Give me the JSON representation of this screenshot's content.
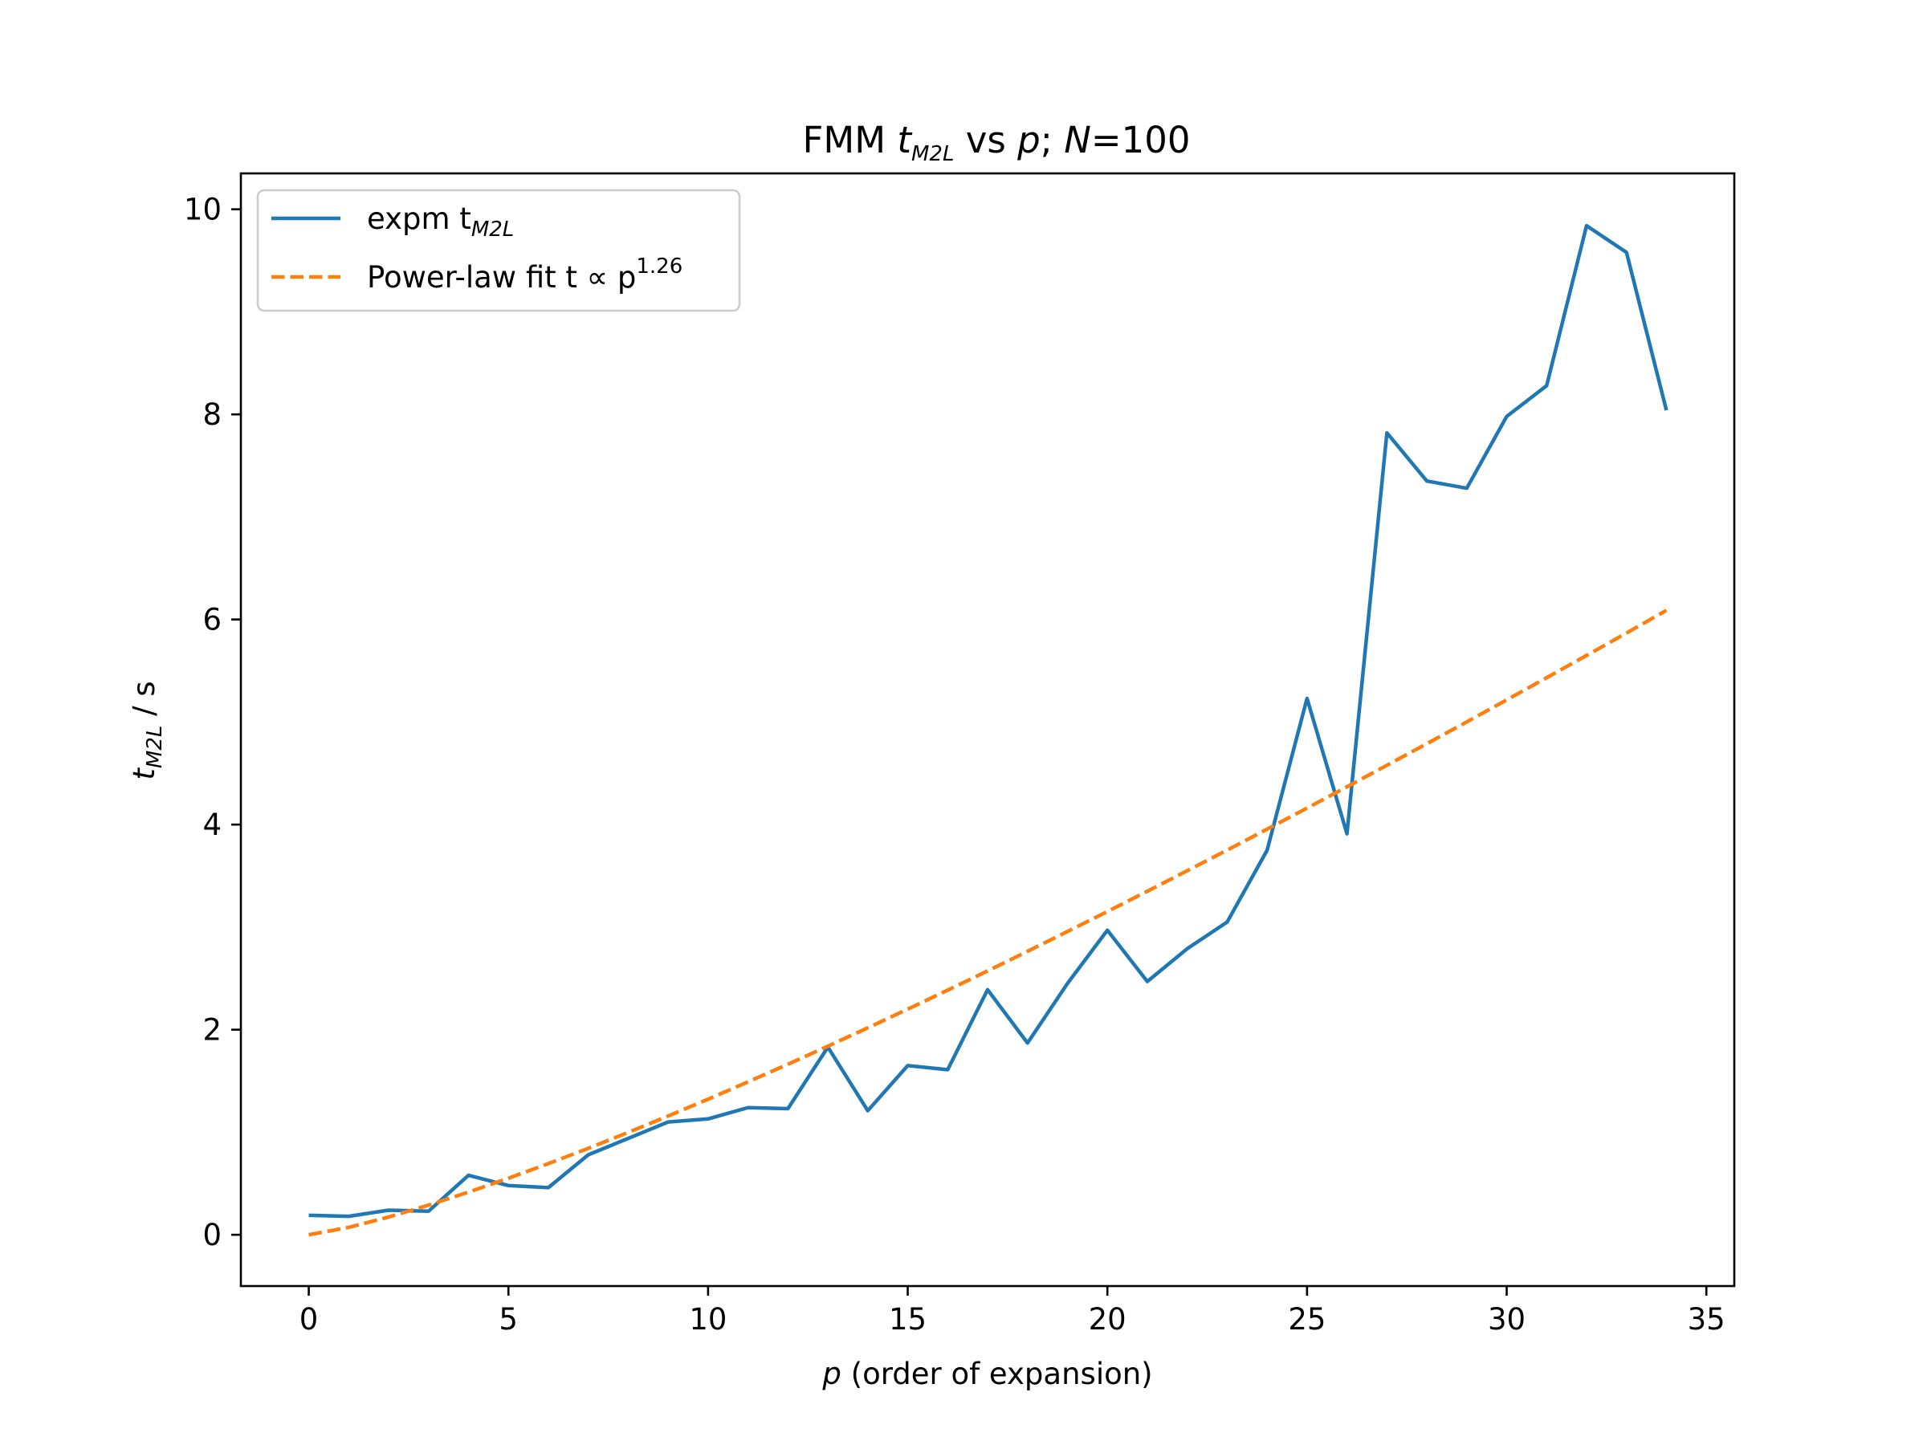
{
  "chart_data": {
    "type": "line",
    "title": {
      "prefix": "FMM ",
      "t": "t",
      "t_sub": "M2L",
      "middle": " vs ",
      "p": "p",
      "semi": "; ",
      "N": "N",
      "suffix": "=100"
    },
    "xlabel": {
      "p": "p",
      "rest": " (order of expansion)"
    },
    "ylabel": {
      "t": "t",
      "t_sub": "M2L",
      "rest": " / s"
    },
    "xlim": [
      -1.7,
      35.7
    ],
    "ylim": [
      -0.5,
      10.35
    ],
    "xticks": [
      0,
      5,
      10,
      15,
      20,
      25,
      30,
      35
    ],
    "yticks": [
      0,
      2,
      4,
      6,
      8,
      10
    ],
    "xtick_labels": [
      "0",
      "5",
      "10",
      "15",
      "20",
      "25",
      "30",
      "35"
    ],
    "ytick_labels": [
      "0",
      "2",
      "4",
      "6",
      "8",
      "10"
    ],
    "grid": false,
    "legend_position": "top-left",
    "series": [
      {
        "name": "expm  t",
        "name_sub": "M2L",
        "color": "#1f77b4",
        "style": "solid",
        "x": [
          0,
          1,
          2,
          3,
          4,
          5,
          6,
          7,
          8,
          9,
          10,
          11,
          12,
          13,
          14,
          15,
          16,
          17,
          18,
          19,
          20,
          21,
          22,
          23,
          24,
          25,
          26,
          27,
          28,
          29,
          30,
          31,
          32,
          33,
          34
        ],
        "values": [
          0.19,
          0.18,
          0.24,
          0.23,
          0.58,
          0.48,
          0.46,
          0.78,
          0.94,
          1.1,
          1.13,
          1.24,
          1.23,
          1.83,
          1.21,
          1.65,
          1.61,
          2.39,
          1.87,
          2.45,
          2.97,
          2.47,
          2.79,
          3.05,
          3.75,
          5.23,
          3.91,
          7.82,
          7.35,
          7.28,
          7.98,
          8.28,
          9.84,
          9.58,
          8.04
        ]
      },
      {
        "name": "Power-law fit  t ∝ p",
        "name_sup": "1.26",
        "color": "#ff7f0e",
        "style": "dashed",
        "x": [
          0,
          1,
          2,
          3,
          4,
          5,
          6,
          7,
          8,
          9,
          10,
          11,
          12,
          13,
          14,
          15,
          16,
          17,
          18,
          19,
          20,
          21,
          22,
          23,
          24,
          25,
          26,
          27,
          28,
          29,
          30,
          31,
          32,
          33,
          34
        ],
        "values": [
          0.0,
          0.072,
          0.173,
          0.289,
          0.416,
          0.551,
          0.694,
          0.843,
          0.998,
          1.158,
          1.322,
          1.491,
          1.663,
          1.839,
          2.018,
          2.2,
          2.385,
          2.573,
          2.764,
          2.957,
          3.152,
          3.35,
          3.55,
          3.751,
          3.955,
          4.161,
          4.368,
          4.578,
          4.789,
          5.001,
          5.216,
          5.432,
          5.649,
          5.868,
          6.089
        ]
      }
    ]
  }
}
